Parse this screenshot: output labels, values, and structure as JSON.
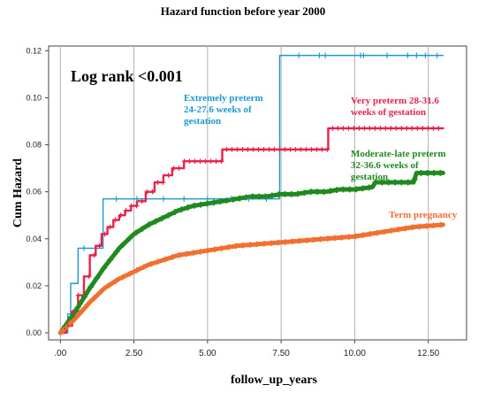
{
  "chart_data": {
    "type": "line",
    "title": "Hazard function before year 2000",
    "xlabel": "follow_up_years",
    "ylabel": "Cum Hazard",
    "xlim": [
      -0.4,
      13.8
    ],
    "ylim": [
      -0.003,
      0.122
    ],
    "x_ticks": [
      0,
      2.5,
      5,
      7.5,
      10,
      12.5
    ],
    "x_tick_labels": [
      ".00",
      "2.50",
      "5.00",
      "7.50",
      "10.00",
      "12.50"
    ],
    "y_ticks": [
      0,
      0.02,
      0.04,
      0.06,
      0.08,
      0.1,
      0.12
    ],
    "y_tick_labels": [
      "0.00",
      "0.02",
      "0.04",
      "0.06",
      "0.08",
      "0.10",
      "0.12"
    ],
    "grid": "vertical",
    "annotation": "Log rank <0.001",
    "series": [
      {
        "name": "Extremely preterm 24-27.6  weeks of gestation",
        "label_lines": [
          "Extremely preterm",
          "24-27.6  weeks of",
          "gestation"
        ],
        "color": "#1f97d4",
        "style": "step",
        "points": [
          [
            0,
            0
          ],
          [
            0.25,
            0.008
          ],
          [
            0.35,
            0.021
          ],
          [
            0.6,
            0.036
          ],
          [
            1.3,
            0.036
          ],
          [
            1.45,
            0.057
          ],
          [
            7.4,
            0.057
          ],
          [
            7.45,
            0.118
          ],
          [
            13.0,
            0.118
          ]
        ]
      },
      {
        "name": "Very preterm 28-31.6 weeks of gestation",
        "label_lines": [
          "Very  preterm  28-31.6",
          "weeks of gestation"
        ],
        "color": "#e8224a",
        "style": "step",
        "points": [
          [
            0,
            0
          ],
          [
            0.2,
            0.003
          ],
          [
            0.4,
            0.009
          ],
          [
            0.6,
            0.016
          ],
          [
            0.8,
            0.024
          ],
          [
            1.0,
            0.033
          ],
          [
            1.2,
            0.037
          ],
          [
            1.4,
            0.042
          ],
          [
            1.6,
            0.045
          ],
          [
            1.8,
            0.048
          ],
          [
            2.0,
            0.05
          ],
          [
            2.2,
            0.052
          ],
          [
            2.4,
            0.054
          ],
          [
            2.6,
            0.056
          ],
          [
            2.9,
            0.06
          ],
          [
            3.2,
            0.064
          ],
          [
            3.5,
            0.067
          ],
          [
            3.8,
            0.07
          ],
          [
            4.2,
            0.073
          ],
          [
            5.4,
            0.073
          ],
          [
            5.5,
            0.078
          ],
          [
            9.0,
            0.078
          ],
          [
            9.1,
            0.087
          ],
          [
            13.0,
            0.087
          ]
        ]
      },
      {
        "name": "Moderate-late preterm 32-36.6  weeks of gestation",
        "label_lines": [
          "Moderate-late preterm",
          "32-36.6  weeks of",
          "gestation"
        ],
        "color": "#1f8a1f",
        "style": "line",
        "points": [
          [
            0,
            0
          ],
          [
            0.5,
            0.009
          ],
          [
            1.0,
            0.019
          ],
          [
            1.5,
            0.028
          ],
          [
            2.0,
            0.036
          ],
          [
            2.5,
            0.042
          ],
          [
            3.0,
            0.046
          ],
          [
            3.5,
            0.049
          ],
          [
            4.0,
            0.052
          ],
          [
            4.5,
            0.054
          ],
          [
            5.0,
            0.055
          ],
          [
            5.5,
            0.056
          ],
          [
            6.0,
            0.057
          ],
          [
            6.5,
            0.058
          ],
          [
            7.0,
            0.058
          ],
          [
            7.5,
            0.059
          ],
          [
            8.0,
            0.059
          ],
          [
            8.5,
            0.06
          ],
          [
            9.0,
            0.06
          ],
          [
            9.5,
            0.061
          ],
          [
            10.0,
            0.061
          ],
          [
            10.6,
            0.062
          ],
          [
            10.7,
            0.064
          ],
          [
            12.0,
            0.064
          ],
          [
            12.1,
            0.068
          ],
          [
            13.0,
            0.068
          ]
        ]
      },
      {
        "name": "Term pregnancy",
        "label_lines": [
          "Term pregnancy"
        ],
        "color": "#f07030",
        "style": "line",
        "points": [
          [
            0,
            0
          ],
          [
            0.5,
            0.006
          ],
          [
            1.0,
            0.013
          ],
          [
            1.5,
            0.019
          ],
          [
            2.0,
            0.023
          ],
          [
            2.5,
            0.026
          ],
          [
            3.0,
            0.029
          ],
          [
            3.5,
            0.031
          ],
          [
            4.0,
            0.033
          ],
          [
            4.5,
            0.034
          ],
          [
            5.0,
            0.035
          ],
          [
            6.0,
            0.037
          ],
          [
            7.0,
            0.038
          ],
          [
            8.0,
            0.039
          ],
          [
            9.0,
            0.04
          ],
          [
            10.0,
            0.041
          ],
          [
            11.0,
            0.043
          ],
          [
            12.0,
            0.045
          ],
          [
            13.0,
            0.046
          ]
        ]
      }
    ]
  }
}
